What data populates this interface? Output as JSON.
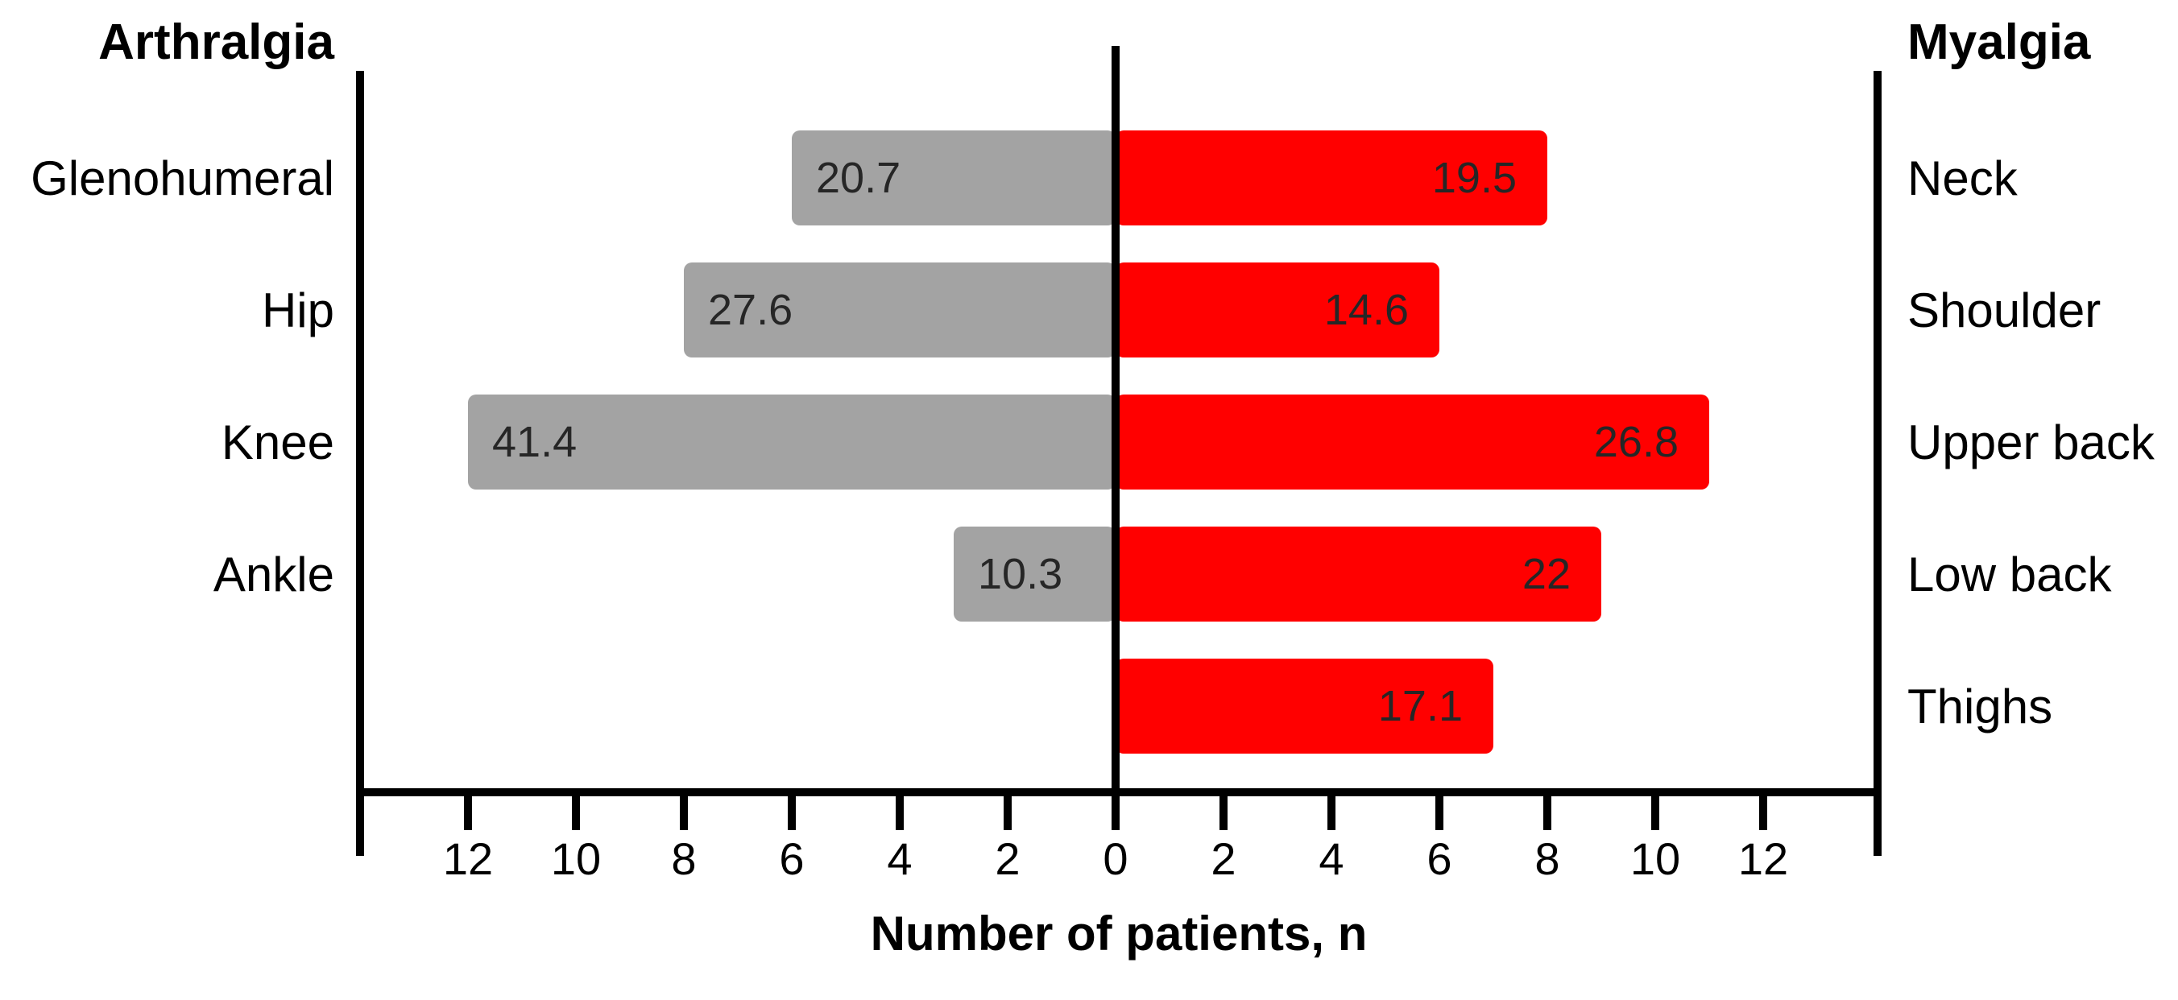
{
  "chart_data": {
    "type": "bar",
    "subtype": "diverging-butterfly",
    "orientation": "horizontal",
    "title": "",
    "xlabel": "Number of patients, n",
    "axis": {
      "tick_units": [
        -12,
        -10,
        -8,
        -6,
        -4,
        -2,
        0,
        2,
        4,
        6,
        8,
        10,
        12
      ],
      "tick_labels": [
        "12",
        "10",
        "8",
        "6",
        "4",
        "2",
        "0",
        "2",
        "4",
        "6",
        "8",
        "10",
        "12"
      ],
      "units_per_side": 14,
      "grid": false
    },
    "left_series": {
      "name": "Arthralgia",
      "color": "#a3a3a3",
      "bars": [
        {
          "row": 0,
          "category": "Glenohumeral",
          "n": 6,
          "label": "20.7"
        },
        {
          "row": 1,
          "category": "Hip",
          "n": 8,
          "label": "27.6"
        },
        {
          "row": 2,
          "category": "Knee",
          "n": 12,
          "label": "41.4"
        },
        {
          "row": 3,
          "category": "Ankle",
          "n": 3,
          "label": "10.3"
        }
      ]
    },
    "right_series": {
      "name": "Myalgia",
      "color": "#ff0000",
      "bars": [
        {
          "row": 0,
          "category": "Neck",
          "n": 8,
          "label": "19.5"
        },
        {
          "row": 1,
          "category": "Shoulder",
          "n": 6,
          "label": "14.6"
        },
        {
          "row": 2,
          "category": "Upper back",
          "n": 11,
          "label": "26.8"
        },
        {
          "row": 3,
          "category": "Low back",
          "n": 9,
          "label": "22"
        },
        {
          "row": 4,
          "category": "Thighs",
          "n": 7,
          "label": "17.1"
        }
      ]
    },
    "colors": {
      "axis": "#000000",
      "bar_value_text": "#262626",
      "background": "#ffffff"
    }
  }
}
